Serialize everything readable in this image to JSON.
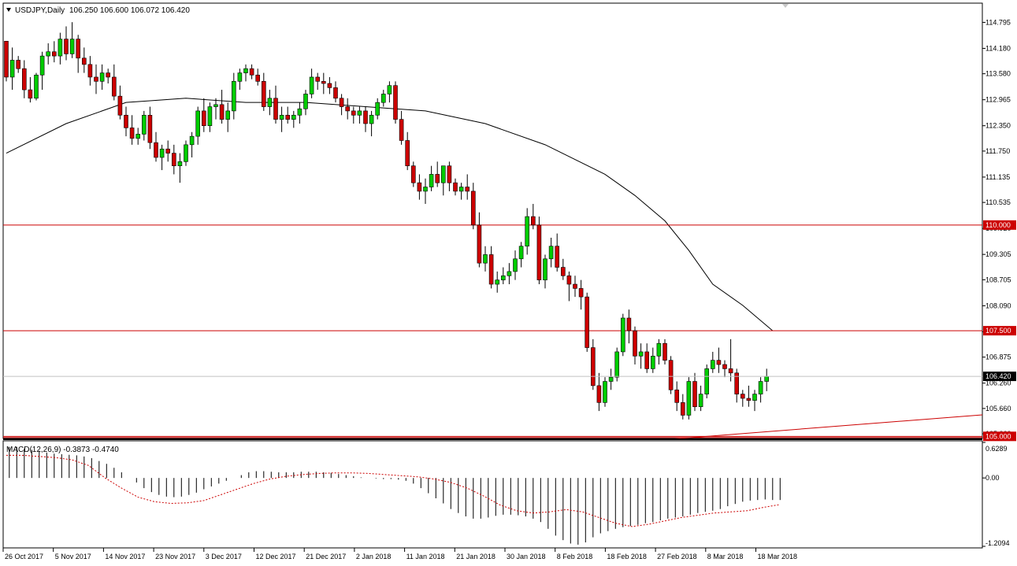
{
  "header": {
    "symbol": "USDJPY,Daily",
    "ohlc": "106.250 106.600 106.072 106.420"
  },
  "macd_header": "MACD(12,26,9) -0.3873 -0.4740",
  "chart_data": [
    {
      "type": "candlestick",
      "title": "USDJPY,Daily",
      "y_ticks": [
        "114.795",
        "114.180",
        "113.580",
        "112.965",
        "112.350",
        "111.750",
        "111.135",
        "110.535",
        "109.920",
        "109.305",
        "108.705",
        "108.090",
        "107.475",
        "106.875",
        "106.260",
        "105.660",
        "105.060"
      ],
      "ylim": [
        104.95,
        115.25
      ],
      "x_tick_labels": [
        "26 Oct 2017",
        "5 Nov 2017",
        "14 Nov 2017",
        "23 Nov 2017",
        "3 Dec 2017",
        "12 Dec 2017",
        "21 Dec 2017",
        "2 Jan 2018",
        "11 Jan 2018",
        "21 Jan 2018",
        "30 Jan 2018",
        "8 Feb 2018",
        "18 Feb 2018",
        "27 Feb 2018",
        "8 Mar 2018",
        "18 Mar 2018"
      ],
      "last_price": "106.420",
      "horizontal_levels": [
        {
          "label": "110.000",
          "value": 110.0,
          "color": "#cc0000"
        },
        {
          "label": "107.500",
          "value": 107.5,
          "color": "#cc0000"
        },
        {
          "label": "105.000",
          "value": 105.0,
          "color": "#cc0000"
        }
      ],
      "colors": {
        "bull": "#00cc00",
        "bear": "#cc0000",
        "wick": "#000000",
        "ma": "#000000",
        "grid": "#c0c0c0"
      },
      "candles": [
        [
          114.35,
          114.3,
          113.4,
          113.5
        ],
        [
          113.5,
          114.2,
          113.2,
          113.9
        ],
        [
          113.9,
          114.0,
          113.6,
          113.7
        ],
        [
          113.7,
          113.9,
          113.0,
          113.2
        ],
        [
          113.2,
          113.5,
          112.9,
          113.0
        ],
        [
          113.0,
          113.6,
          112.95,
          113.55
        ],
        [
          113.55,
          114.1,
          113.2,
          114.0
        ],
        [
          114.0,
          114.3,
          113.8,
          114.1
        ],
        [
          114.1,
          114.35,
          113.85,
          114.0
        ],
        [
          114.0,
          114.55,
          113.8,
          114.4
        ],
        [
          114.4,
          114.7,
          113.9,
          114.05
        ],
        [
          114.05,
          114.8,
          113.95,
          114.4
        ],
        [
          114.4,
          114.5,
          113.6,
          113.95
        ],
        [
          113.95,
          114.2,
          113.6,
          113.8
        ],
        [
          113.8,
          114.0,
          113.3,
          113.5
        ],
        [
          113.5,
          113.8,
          113.1,
          113.4
        ],
        [
          113.4,
          113.8,
          113.2,
          113.6
        ],
        [
          113.6,
          113.7,
          113.35,
          113.5
        ],
        [
          113.5,
          113.8,
          112.95,
          113.05
        ],
        [
          113.05,
          113.3,
          112.5,
          112.6
        ],
        [
          112.6,
          112.8,
          112.1,
          112.3
        ],
        [
          112.3,
          112.6,
          111.9,
          112.05
        ],
        [
          112.05,
          112.3,
          111.9,
          112.15
        ],
        [
          112.15,
          112.7,
          112.0,
          112.6
        ],
        [
          112.6,
          112.8,
          111.8,
          111.95
        ],
        [
          111.95,
          112.2,
          111.5,
          111.6
        ],
        [
          111.6,
          111.9,
          111.3,
          111.8
        ],
        [
          111.8,
          112.0,
          111.5,
          111.7
        ],
        [
          111.7,
          111.9,
          111.2,
          111.4
        ],
        [
          111.4,
          111.7,
          111.0,
          111.5
        ],
        [
          111.5,
          112.0,
          111.4,
          111.9
        ],
        [
          111.9,
          112.2,
          111.6,
          112.1
        ],
        [
          112.1,
          112.8,
          111.9,
          112.7
        ],
        [
          112.7,
          113.0,
          112.2,
          112.35
        ],
        [
          112.35,
          112.9,
          112.2,
          112.8
        ],
        [
          112.8,
          113.0,
          112.5,
          112.85
        ],
        [
          112.85,
          113.2,
          112.4,
          112.5
        ],
        [
          112.5,
          112.9,
          112.2,
          112.7
        ],
        [
          112.7,
          113.6,
          112.5,
          113.4
        ],
        [
          113.4,
          113.7,
          113.2,
          113.6
        ],
        [
          113.6,
          113.8,
          113.4,
          113.7
        ],
        [
          113.7,
          113.8,
          113.45,
          113.55
        ],
        [
          113.55,
          113.7,
          113.3,
          113.4
        ],
        [
          113.4,
          113.6,
          112.7,
          112.8
        ],
        [
          112.8,
          113.2,
          112.6,
          113.0
        ],
        [
          113.0,
          113.3,
          112.4,
          112.5
        ],
        [
          112.5,
          112.8,
          112.2,
          112.6
        ],
        [
          112.6,
          112.8,
          112.4,
          112.5
        ],
        [
          112.5,
          112.7,
          112.3,
          112.6
        ],
        [
          112.6,
          112.9,
          112.4,
          112.75
        ],
        [
          112.75,
          113.2,
          112.6,
          113.1
        ],
        [
          113.1,
          113.7,
          113.0,
          113.5
        ],
        [
          113.5,
          113.6,
          113.2,
          113.4
        ],
        [
          113.4,
          113.6,
          113.1,
          113.35
        ],
        [
          113.35,
          113.5,
          113.1,
          113.25
        ],
        [
          113.25,
          113.4,
          112.9,
          113.0
        ],
        [
          113.0,
          113.1,
          112.6,
          112.8
        ],
        [
          112.8,
          113.0,
          112.5,
          112.7
        ],
        [
          112.7,
          112.8,
          112.4,
          112.6
        ],
        [
          112.6,
          112.8,
          112.4,
          112.7
        ],
        [
          112.7,
          112.8,
          112.2,
          112.4
        ],
        [
          112.4,
          112.7,
          112.1,
          112.6
        ],
        [
          112.6,
          113.0,
          112.5,
          112.9
        ],
        [
          112.9,
          113.2,
          112.8,
          113.1
        ],
        [
          113.1,
          113.4,
          112.9,
          113.3
        ],
        [
          113.3,
          113.4,
          112.4,
          112.5
        ],
        [
          112.5,
          112.7,
          111.9,
          112.0
        ],
        [
          112.0,
          112.2,
          111.3,
          111.4
        ],
        [
          111.4,
          111.5,
          110.9,
          111.0
        ],
        [
          111.0,
          111.2,
          110.6,
          110.8
        ],
        [
          110.8,
          111.1,
          110.5,
          110.9
        ],
        [
          110.9,
          111.4,
          110.8,
          111.2
        ],
        [
          111.2,
          111.5,
          110.9,
          111.0
        ],
        [
          111.0,
          111.4,
          110.7,
          111.4
        ],
        [
          111.4,
          111.5,
          110.8,
          111.0
        ],
        [
          111.0,
          111.1,
          110.7,
          110.8
        ],
        [
          110.8,
          111.0,
          110.6,
          110.9
        ],
        [
          110.9,
          111.2,
          110.6,
          110.8
        ],
        [
          110.8,
          111.0,
          109.9,
          110.0
        ],
        [
          110.0,
          110.3,
          109.0,
          109.1
        ],
        [
          109.1,
          109.5,
          108.9,
          109.3
        ],
        [
          109.3,
          109.5,
          108.5,
          108.6
        ],
        [
          108.6,
          108.9,
          108.4,
          108.7
        ],
        [
          108.7,
          109.0,
          108.6,
          108.8
        ],
        [
          108.8,
          109.1,
          108.6,
          108.9
        ],
        [
          108.9,
          109.4,
          108.7,
          109.2
        ],
        [
          109.2,
          109.6,
          109.0,
          109.5
        ],
        [
          109.5,
          110.4,
          109.3,
          110.2
        ],
        [
          110.2,
          110.5,
          109.9,
          110.0
        ],
        [
          110.0,
          110.2,
          108.6,
          108.7
        ],
        [
          108.7,
          109.3,
          108.5,
          109.2
        ],
        [
          109.2,
          109.7,
          109.0,
          109.5
        ],
        [
          109.5,
          109.8,
          108.9,
          109.0
        ],
        [
          109.0,
          109.2,
          108.7,
          108.8
        ],
        [
          108.8,
          108.9,
          108.2,
          108.6
        ],
        [
          108.6,
          108.8,
          108.3,
          108.5
        ],
        [
          108.5,
          108.7,
          108.0,
          108.3
        ],
        [
          108.3,
          108.4,
          107.0,
          107.1
        ],
        [
          107.1,
          107.3,
          106.1,
          106.2
        ],
        [
          106.2,
          106.5,
          105.6,
          105.8
        ],
        [
          105.8,
          106.4,
          105.7,
          106.3
        ],
        [
          106.3,
          106.6,
          106.1,
          106.4
        ],
        [
          106.4,
          107.1,
          106.3,
          107.0
        ],
        [
          107.0,
          107.9,
          106.9,
          107.8
        ],
        [
          107.8,
          108.0,
          107.2,
          107.5
        ],
        [
          107.5,
          107.6,
          106.7,
          106.9
        ],
        [
          106.9,
          107.2,
          106.6,
          107.0
        ],
        [
          107.0,
          107.2,
          106.5,
          106.6
        ],
        [
          106.6,
          107.1,
          106.5,
          106.9
        ],
        [
          106.9,
          107.3,
          106.7,
          107.2
        ],
        [
          107.2,
          107.3,
          106.7,
          106.8
        ],
        [
          106.8,
          106.9,
          106.0,
          106.1
        ],
        [
          106.1,
          106.3,
          105.6,
          105.8
        ],
        [
          105.8,
          106.0,
          105.4,
          105.5
        ],
        [
          105.5,
          106.4,
          105.4,
          106.3
        ],
        [
          106.3,
          106.5,
          105.6,
          105.7
        ],
        [
          105.7,
          106.2,
          105.6,
          106.0
        ],
        [
          106.0,
          106.7,
          105.9,
          106.6
        ],
        [
          106.6,
          107.0,
          106.5,
          106.8
        ],
        [
          106.8,
          107.1,
          106.5,
          106.7
        ],
        [
          106.7,
          106.8,
          106.4,
          106.6
        ],
        [
          106.6,
          107.3,
          106.3,
          106.5
        ],
        [
          106.5,
          106.6,
          105.8,
          106.0
        ],
        [
          106.0,
          106.1,
          105.7,
          105.9
        ],
        [
          105.9,
          106.2,
          105.7,
          105.85
        ],
        [
          105.85,
          106.1,
          105.6,
          106.0
        ],
        [
          106.0,
          106.4,
          105.8,
          106.3
        ],
        [
          106.3,
          106.6,
          106.07,
          106.42
        ]
      ],
      "ma": [
        [
          0,
          111.7
        ],
        [
          10,
          112.4
        ],
        [
          20,
          112.9
        ],
        [
          30,
          113.0
        ],
        [
          40,
          112.9
        ],
        [
          50,
          112.9
        ],
        [
          60,
          112.8
        ],
        [
          70,
          112.7
        ],
        [
          80,
          112.4
        ],
        [
          90,
          111.9
        ],
        [
          100,
          111.2
        ],
        [
          105,
          110.7
        ],
        [
          110,
          110.1
        ],
        [
          114,
          109.4
        ],
        [
          118,
          108.6
        ],
        [
          123,
          108.1
        ],
        [
          128,
          107.5
        ]
      ]
    },
    {
      "type": "bar",
      "title": "MACD(12,26,9)",
      "y_ticks": [
        "0.6289",
        "0.00",
        "-1.2094"
      ],
      "ylim": [
        -1.2094,
        0.6289
      ],
      "histogram": [
        0.55,
        0.55,
        0.52,
        0.5,
        0.48,
        0.45,
        0.43,
        0.42,
        0.41,
        0.4,
        0.38,
        0.35,
        0.3,
        0.25,
        0.18,
        0.1,
        0.0,
        -0.08,
        -0.18,
        -0.25,
        -0.3,
        -0.33,
        -0.34,
        -0.33,
        -0.3,
        -0.26,
        -0.2,
        -0.15,
        -0.1,
        -0.05,
        0.0,
        0.05,
        0.1,
        0.12,
        0.12,
        0.11,
        0.1,
        0.1,
        0.1,
        0.11,
        0.11,
        0.11,
        0.1,
        0.09,
        0.07,
        0.05,
        0.03,
        0.01,
        0.0,
        -0.01,
        -0.02,
        -0.02,
        -0.03,
        -0.05,
        -0.1,
        -0.18,
        -0.27,
        -0.36,
        -0.45,
        -0.55,
        -0.62,
        -0.68,
        -0.72,
        -0.72,
        -0.7,
        -0.67,
        -0.65,
        -0.65,
        -0.66,
        -0.68,
        -0.72,
        -0.78,
        -0.9,
        -1.02,
        -1.1,
        -1.16,
        -1.18,
        -1.14,
        -1.05,
        -0.98,
        -0.94,
        -0.9,
        -0.87,
        -0.85,
        -0.83,
        -0.8,
        -0.78,
        -0.75,
        -0.72,
        -0.7,
        -0.68,
        -0.65,
        -0.62,
        -0.6,
        -0.58,
        -0.55,
        -0.5,
        -0.46,
        -0.42,
        -0.4,
        -0.39,
        -0.38,
        -0.39,
        -0.39
      ],
      "signal": [
        0.4,
        0.4,
        0.38,
        0.36,
        0.32,
        0.22,
        0.0,
        -0.18,
        -0.34,
        -0.42,
        -0.45,
        -0.44,
        -0.4,
        -0.3,
        -0.2,
        -0.1,
        -0.02,
        0.03,
        0.06,
        0.08,
        0.09,
        0.09,
        0.08,
        0.06,
        0.04,
        0.02,
        -0.02,
        -0.08,
        -0.18,
        -0.32,
        -0.48,
        -0.58,
        -0.62,
        -0.6,
        -0.56,
        -0.6,
        -0.7,
        -0.8,
        -0.86,
        -0.82,
        -0.76,
        -0.7,
        -0.66,
        -0.62,
        -0.6,
        -0.58,
        -0.52,
        -0.47
      ],
      "signal_color": "#cc0000"
    }
  ]
}
